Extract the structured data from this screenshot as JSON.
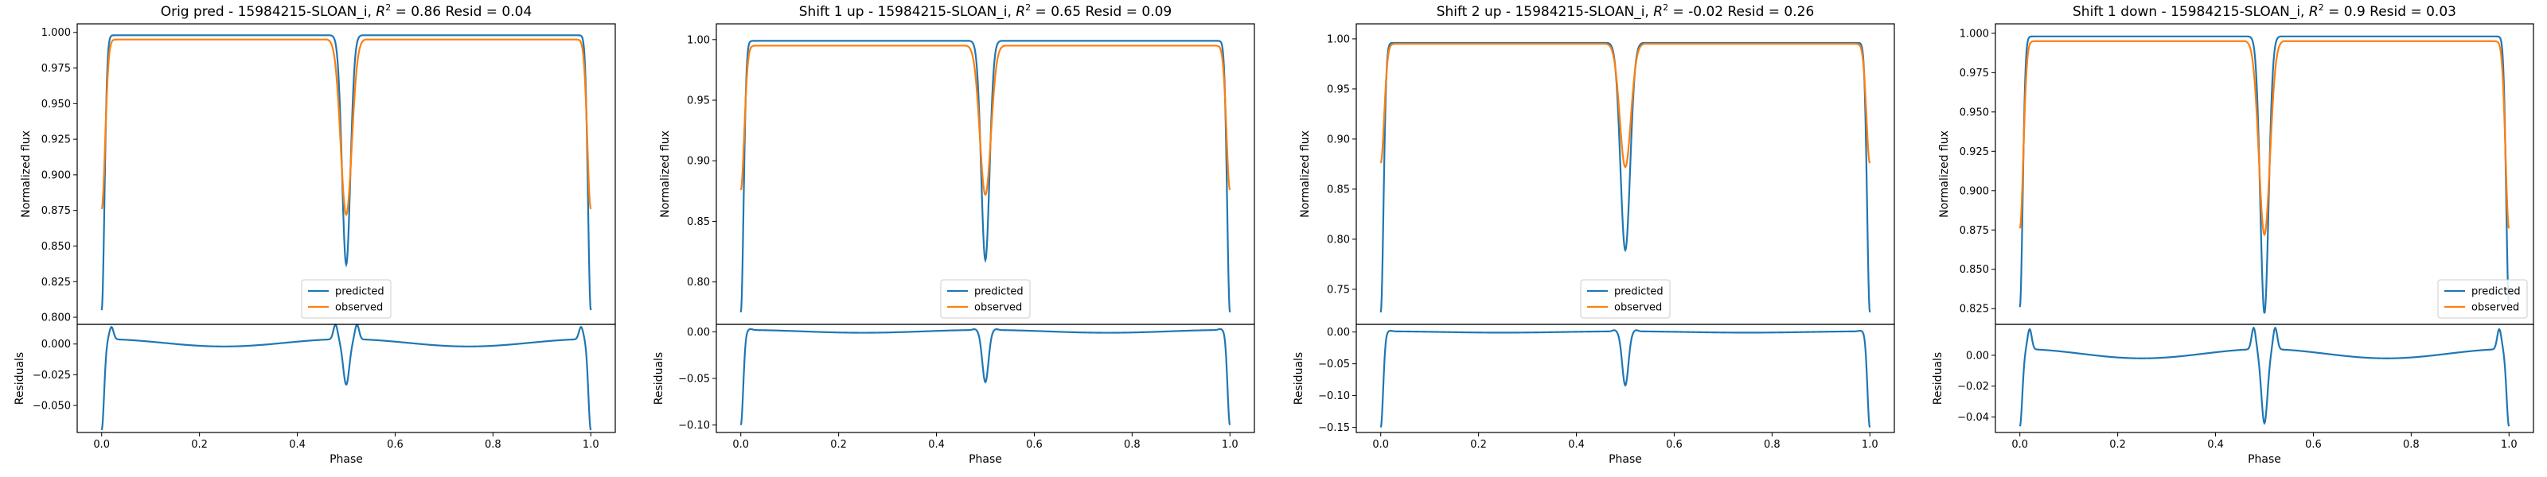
{
  "chart_data": [
    {
      "type": "line",
      "title_prefix": "Orig pred - 15984215-SLOAN_i, ",
      "r2_symbol": "R",
      "r2_sup": "2",
      "title_suffix": " = 0.86 Resid = 0.04",
      "xlabel": "Phase",
      "ylabel_top": "Normalized flux",
      "ylabel_bottom": "Residuals",
      "xlim": [
        -0.05,
        1.05
      ],
      "top_ylim": [
        0.795,
        1.006
      ],
      "top_yticks": [
        0.8,
        0.825,
        0.85,
        0.875,
        0.9,
        0.925,
        0.95,
        0.975,
        1.0
      ],
      "top_ytick_labels": [
        "0.800",
        "0.825",
        "0.850",
        "0.875",
        "0.900",
        "0.925",
        "0.950",
        "0.975",
        "1.000"
      ],
      "bottom_ylim": [
        -0.072,
        0.016
      ],
      "bottom_yticks": [
        0.0,
        -0.025,
        -0.05
      ],
      "bottom_ytick_labels": [
        "0.000",
        "−0.025",
        "−0.050"
      ],
      "xticks": [
        0.0,
        0.2,
        0.4,
        0.6,
        0.8,
        1.0
      ],
      "xtick_labels": [
        "0.0",
        "0.2",
        "0.4",
        "0.6",
        "0.8",
        "1.0"
      ],
      "legend_position": "bottom-center",
      "series": [
        {
          "name": "predicted",
          "color": "#1f77b4",
          "min_edge": 0.805,
          "plateau_edge": 0.998,
          "plateau_mid": 1.0,
          "eclipse_depth": 0.837,
          "eclipse_width": 0.012,
          "edge_width": 0.008
        },
        {
          "name": "observed",
          "color": "#ff7f0e",
          "min_edge": 0.876,
          "plateau_edge": 0.995,
          "plateau_mid": 1.0,
          "eclipse_depth": 0.872,
          "eclipse_width": 0.016,
          "edge_width": 0.01
        }
      ],
      "residuals": {
        "color": "#1f77b4",
        "edge": -0.07,
        "edge_bump": 0.01,
        "mid_dip": -0.033,
        "mid_bump": 0.012,
        "plateau_edge": 0.004,
        "plateau_mid": -0.002
      }
    },
    {
      "type": "line",
      "title_prefix": "Shift 1 up - 15984215-SLOAN_i, ",
      "r2_symbol": "R",
      "r2_sup": "2",
      "title_suffix": " = 0.65 Resid = 0.09",
      "xlabel": "Phase",
      "ylabel_top": "Normalized flux",
      "ylabel_bottom": "Residuals",
      "xlim": [
        -0.05,
        1.05
      ],
      "top_ylim": [
        0.765,
        1.013
      ],
      "top_yticks": [
        0.8,
        0.85,
        0.9,
        0.95,
        1.0
      ],
      "top_ytick_labels": [
        "0.80",
        "0.85",
        "0.90",
        "0.95",
        "1.00"
      ],
      "bottom_ylim": [
        -0.108,
        0.008
      ],
      "bottom_yticks": [
        0.0,
        -0.05,
        -0.1
      ],
      "bottom_ytick_labels": [
        "0.00",
        "−0.05",
        "−0.10"
      ],
      "xticks": [
        0.0,
        0.2,
        0.4,
        0.6,
        0.8,
        1.0
      ],
      "xtick_labels": [
        "0.0",
        "0.2",
        "0.4",
        "0.6",
        "0.8",
        "1.0"
      ],
      "legend_position": "bottom-center",
      "series": [
        {
          "name": "predicted",
          "color": "#1f77b4",
          "min_edge": 0.775,
          "plateau_edge": 0.999,
          "plateau_mid": 1.0,
          "eclipse_depth": 0.818,
          "eclipse_width": 0.012,
          "edge_width": 0.008
        },
        {
          "name": "observed",
          "color": "#ff7f0e",
          "min_edge": 0.876,
          "plateau_edge": 0.995,
          "plateau_mid": 1.0,
          "eclipse_depth": 0.872,
          "eclipse_width": 0.016,
          "edge_width": 0.01
        }
      ],
      "residuals": {
        "color": "#1f77b4",
        "edge": -0.1,
        "edge_bump": 0.001,
        "mid_dip": -0.054,
        "mid_bump": 0.001,
        "plateau_edge": 0.002,
        "plateau_mid": -0.001
      }
    },
    {
      "type": "line",
      "title_prefix": "Shift 2 up - 15984215-SLOAN_i, ",
      "r2_symbol": "R",
      "r2_sup": "2",
      "title_suffix": " = -0.02 Resid = 0.26",
      "xlabel": "Phase",
      "ylabel_top": "Normalized flux",
      "ylabel_bottom": "Residuals",
      "xlim": [
        -0.05,
        1.05
      ],
      "top_ylim": [
        0.715,
        1.015
      ],
      "top_yticks": [
        0.75,
        0.8,
        0.85,
        0.9,
        0.95,
        1.0
      ],
      "top_ytick_labels": [
        "0.75",
        "0.80",
        "0.85",
        "0.90",
        "0.95",
        "1.00"
      ],
      "bottom_ylim": [
        -0.158,
        0.012
      ],
      "bottom_yticks": [
        0.0,
        -0.05,
        -0.1,
        -0.15
      ],
      "bottom_ytick_labels": [
        "0.00",
        "−0.05",
        "−0.10",
        "−0.15"
      ],
      "xticks": [
        0.0,
        0.2,
        0.4,
        0.6,
        0.8,
        1.0
      ],
      "xtick_labels": [
        "0.0",
        "0.2",
        "0.4",
        "0.6",
        "0.8",
        "1.0"
      ],
      "legend_position": "bottom-center",
      "series": [
        {
          "name": "predicted",
          "color": "#1f77b4",
          "min_edge": 0.727,
          "plateau_edge": 0.996,
          "plateau_mid": 1.0,
          "eclipse_depth": 0.789,
          "eclipse_width": 0.014,
          "edge_width": 0.008
        },
        {
          "name": "observed",
          "color": "#ff7f0e",
          "min_edge": 0.876,
          "plateau_edge": 0.995,
          "plateau_mid": 1.0,
          "eclipse_depth": 0.872,
          "eclipse_width": 0.016,
          "edge_width": 0.01
        }
      ],
      "residuals": {
        "color": "#1f77b4",
        "edge": -0.15,
        "edge_bump": 0.001,
        "mid_dip": -0.084,
        "mid_bump": 0.002,
        "plateau_edge": 0.001,
        "plateau_mid": -0.001
      }
    },
    {
      "type": "line",
      "title_prefix": "Shift 1 down - 15984215-SLOAN_i, ",
      "r2_symbol": "R",
      "r2_sup": "2",
      "title_suffix": " = 0.9 Resid = 0.03",
      "xlabel": "Phase",
      "ylabel_top": "Normalized flux",
      "ylabel_bottom": "Residuals",
      "xlim": [
        -0.05,
        1.05
      ],
      "top_ylim": [
        0.815,
        1.006
      ],
      "top_yticks": [
        0.825,
        0.85,
        0.875,
        0.9,
        0.925,
        0.95,
        0.975,
        1.0
      ],
      "top_ytick_labels": [
        "0.825",
        "0.850",
        "0.875",
        "0.900",
        "0.925",
        "0.950",
        "0.975",
        "1.000"
      ],
      "bottom_ylim": [
        -0.05,
        0.02
      ],
      "bottom_yticks": [
        0.0,
        -0.02,
        -0.04
      ],
      "bottom_ytick_labels": [
        "0.00",
        "−0.02",
        "−0.04"
      ],
      "xticks": [
        0.0,
        0.2,
        0.4,
        0.6,
        0.8,
        1.0
      ],
      "xtick_labels": [
        "0.0",
        "0.2",
        "0.4",
        "0.6",
        "0.8",
        "1.0"
      ],
      "legend_position": "bottom-right",
      "series": [
        {
          "name": "predicted",
          "color": "#1f77b4",
          "min_edge": 0.826,
          "plateau_edge": 0.998,
          "plateau_mid": 1.0,
          "eclipse_depth": 0.822,
          "eclipse_width": 0.012,
          "edge_width": 0.008
        },
        {
          "name": "observed",
          "color": "#ff7f0e",
          "min_edge": 0.876,
          "plateau_edge": 0.995,
          "plateau_mid": 1.0,
          "eclipse_depth": 0.872,
          "eclipse_width": 0.016,
          "edge_width": 0.01
        }
      ],
      "residuals": {
        "color": "#1f77b4",
        "edge": -0.046,
        "edge_bump": 0.013,
        "mid_dip": -0.044,
        "mid_bump": 0.014,
        "plateau_edge": 0.004,
        "plateau_mid": -0.002
      }
    }
  ]
}
